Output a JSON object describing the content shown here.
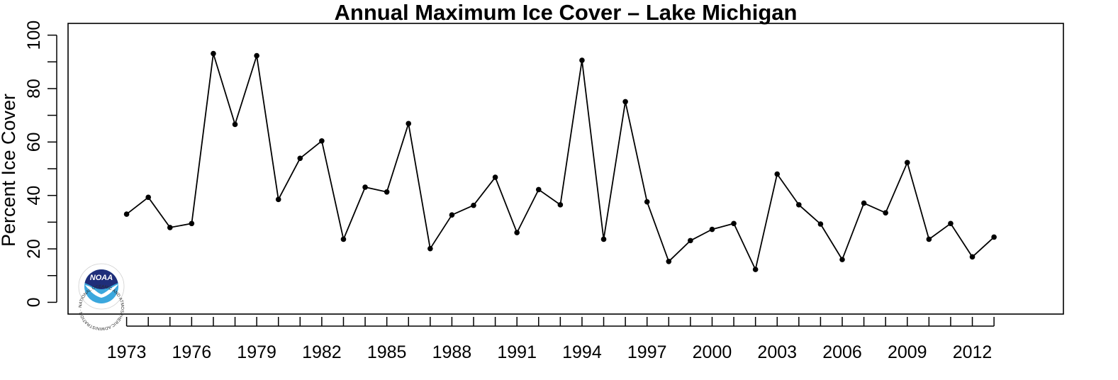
{
  "chart_data": {
    "type": "line",
    "title": "Annual Maximum Ice Cover – Lake Michigan",
    "xlabel": "",
    "ylabel": "Percent Ice Cover",
    "xlim": [
      1970.3,
      2016.2
    ],
    "ylim": [
      -4.4,
      104.4
    ],
    "grid": false,
    "legend": "none",
    "x_tick_labels": [
      "1973",
      "1976",
      "1979",
      "1982",
      "1985",
      "1988",
      "1991",
      "1994",
      "1997",
      "2000",
      "2003",
      "2006",
      "2009",
      "2012"
    ],
    "y_tick_labels": [
      "0",
      "20",
      "40",
      "60",
      "80",
      "100"
    ],
    "line_color": "#000000",
    "point_color": "#000000",
    "series": [
      {
        "x": [
          1973,
          1974,
          1975,
          1976,
          1977,
          1978,
          1979,
          1980,
          1981,
          1982,
          1983,
          1984,
          1985,
          1986,
          1987,
          1988,
          1989,
          1990,
          1991,
          1992,
          1993,
          1994,
          1995,
          1996,
          1997,
          1998,
          1999,
          2000,
          2001,
          2002,
          2003,
          2004,
          2005,
          2006,
          2007,
          2008,
          2009,
          2010,
          2011,
          2012,
          2013
        ],
        "values": [
          33,
          39.3,
          28,
          29.5,
          93.1,
          66.6,
          92.3,
          38.5,
          53.9,
          60.4,
          23.6,
          43.1,
          41.3,
          66.9,
          20.1,
          32.7,
          36.3,
          46.8,
          26.1,
          42.2,
          36.5,
          90.6,
          23.6,
          75.1,
          37.6,
          15.3,
          23.1,
          27.3,
          29.5,
          12.3,
          48,
          36.5,
          29.3,
          16,
          37.1,
          33.5,
          52.3,
          23.6,
          29.5,
          17,
          24.4
        ]
      }
    ]
  },
  "logo": {
    "word": "NOAA",
    "ring_text": "NATIONAL OCEANIC AND ATMOSPHERIC ADMINISTRATION · U.S. DEPARTMENT OF COMMERCE",
    "colors": {
      "top": "#1f2e7a",
      "bottom": "#3ba7dd",
      "bird": "#ffffff"
    }
  }
}
